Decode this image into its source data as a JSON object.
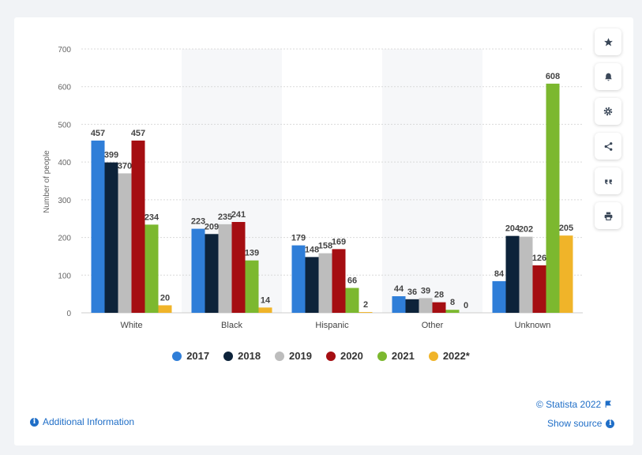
{
  "chart_data": {
    "type": "bar",
    "ylabel": "Number of people",
    "xlabel": "",
    "ylim": [
      0,
      700
    ],
    "yticks": [
      0,
      100,
      200,
      300,
      400,
      500,
      600,
      700
    ],
    "categories": [
      "White",
      "Black",
      "Hispanic",
      "Other",
      "Unknown"
    ],
    "series": [
      {
        "name": "2017",
        "color": "#2f7ed8",
        "values": [
          457,
          223,
          179,
          44,
          84
        ]
      },
      {
        "name": "2018",
        "color": "#0d233a",
        "values": [
          399,
          209,
          148,
          36,
          204
        ]
      },
      {
        "name": "2019",
        "color": "#bdbdbd",
        "values": [
          370,
          235,
          158,
          39,
          202
        ]
      },
      {
        "name": "2020",
        "color": "#a50e12",
        "values": [
          457,
          241,
          169,
          28,
          126
        ]
      },
      {
        "name": "2021",
        "color": "#7cb82f",
        "values": [
          234,
          139,
          66,
          8,
          608
        ]
      },
      {
        "name": "2022*",
        "color": "#f0b429",
        "values": [
          20,
          14,
          2,
          0,
          205
        ]
      }
    ],
    "data_labels": [
      [
        "457",
        "223",
        "179",
        "44",
        "84"
      ],
      [
        "399",
        "209",
        "148",
        "36",
        "204"
      ],
      [
        "370",
        "235",
        "158",
        "39",
        "202"
      ],
      [
        "457",
        "241",
        "169",
        "28",
        "126"
      ],
      [
        "234",
        "139",
        "66",
        "8",
        "608"
      ],
      [
        "20",
        "14",
        "2",
        "0",
        "205"
      ]
    ]
  },
  "sidebar": {
    "icons": [
      "star-icon",
      "bell-icon",
      "gear-icon",
      "share-icon",
      "quote-icon",
      "print-icon"
    ]
  },
  "footer": {
    "credit": "© Statista 2022",
    "show_source": "Show source",
    "additional_info": "Additional Information"
  }
}
